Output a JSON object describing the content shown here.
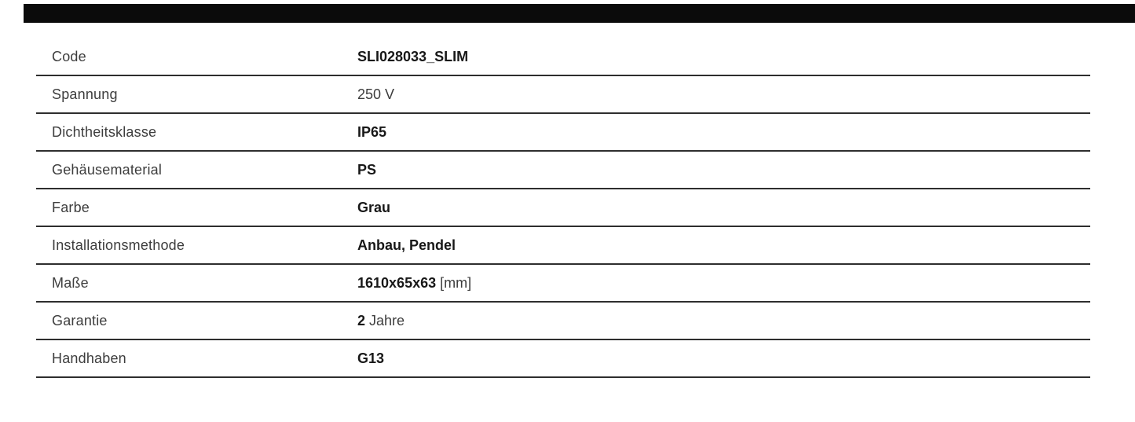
{
  "colors": {
    "top_bar": "#0b0b0b",
    "divider": "#2e2e2e",
    "label_text": "#3d3d3d",
    "value_text": "#181818"
  },
  "table": {
    "rows": [
      {
        "label": "Code",
        "value_bold": "SLI028033_SLIM",
        "value_regular": ""
      },
      {
        "label": "Spannung",
        "value_bold": "",
        "value_regular": "250 V"
      },
      {
        "label": "Dichtheitsklasse",
        "value_bold": "IP65",
        "value_regular": ""
      },
      {
        "label": "Gehäusematerial",
        "value_bold": "PS",
        "value_regular": ""
      },
      {
        "label": "Farbe",
        "value_bold": "Grau",
        "value_regular": ""
      },
      {
        "label": "Installationsmethode",
        "value_bold": "Anbau, Pendel",
        "value_regular": ""
      },
      {
        "label": "Maße",
        "value_bold": "1610x65x63",
        "value_regular": " [mm]"
      },
      {
        "label": "Garantie",
        "value_bold": "2",
        "value_regular": " Jahre"
      },
      {
        "label": "Handhaben",
        "value_bold": "G13",
        "value_regular": ""
      }
    ]
  }
}
